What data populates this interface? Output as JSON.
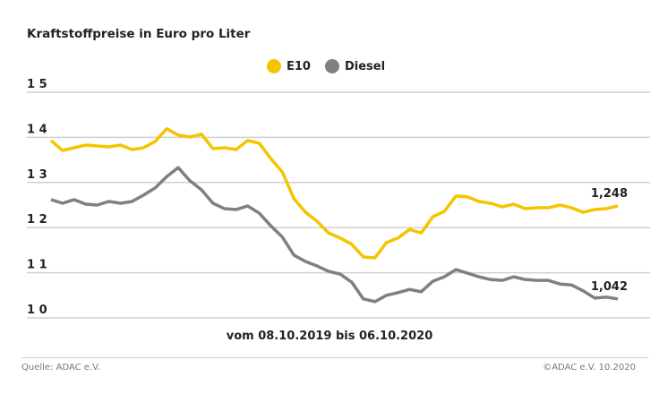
{
  "chart_data": {
    "type": "line",
    "title": "Kraftstoffpreise in Euro pro Liter",
    "subtitle": "vom 08.10.2019 bis 06.10.2020",
    "ylabel": "",
    "xlabel": "",
    "ylim": [
      1.0,
      1.5
    ],
    "yticks": [
      {
        "value": 1.5,
        "label": "1 5"
      },
      {
        "value": 1.4,
        "label": "1 4"
      },
      {
        "value": 1.3,
        "label": "1 3"
      },
      {
        "value": 1.2,
        "label": "1 2"
      },
      {
        "value": 1.1,
        "label": "1 1"
      },
      {
        "value": 1.0,
        "label": "1 0"
      }
    ],
    "grid": true,
    "legend_placement": "top-center",
    "series": [
      {
        "name": "E10",
        "color": "#f5c400",
        "end_label": "1,248",
        "values": [
          1.393,
          1.371,
          1.377,
          1.383,
          1.381,
          1.379,
          1.383,
          1.373,
          1.377,
          1.391,
          1.419,
          1.405,
          1.401,
          1.407,
          1.375,
          1.377,
          1.373,
          1.393,
          1.387,
          1.353,
          1.323,
          1.264,
          1.234,
          1.214,
          1.188,
          1.177,
          1.163,
          1.135,
          1.133,
          1.167,
          1.177,
          1.196,
          1.188,
          1.224,
          1.236,
          1.27,
          1.268,
          1.258,
          1.254,
          1.246,
          1.252,
          1.242,
          1.244,
          1.244,
          1.25,
          1.244,
          1.234,
          1.24,
          1.242,
          1.248
        ]
      },
      {
        "name": "Diesel",
        "color": "#808080",
        "end_label": "1,042",
        "values": [
          1.262,
          1.254,
          1.262,
          1.252,
          1.25,
          1.258,
          1.254,
          1.258,
          1.272,
          1.288,
          1.313,
          1.333,
          1.304,
          1.284,
          1.254,
          1.242,
          1.24,
          1.248,
          1.232,
          1.204,
          1.179,
          1.139,
          1.125,
          1.115,
          1.103,
          1.097,
          1.079,
          1.042,
          1.036,
          1.05,
          1.056,
          1.063,
          1.058,
          1.081,
          1.091,
          1.107,
          1.099,
          1.091,
          1.085,
          1.083,
          1.091,
          1.085,
          1.083,
          1.083,
          1.075,
          1.073,
          1.06,
          1.044,
          1.046,
          1.042
        ]
      }
    ]
  },
  "footer": {
    "source": "Quelle: ADAC e.V.",
    "copyright": "©ADAC e.V. 10.2020"
  }
}
